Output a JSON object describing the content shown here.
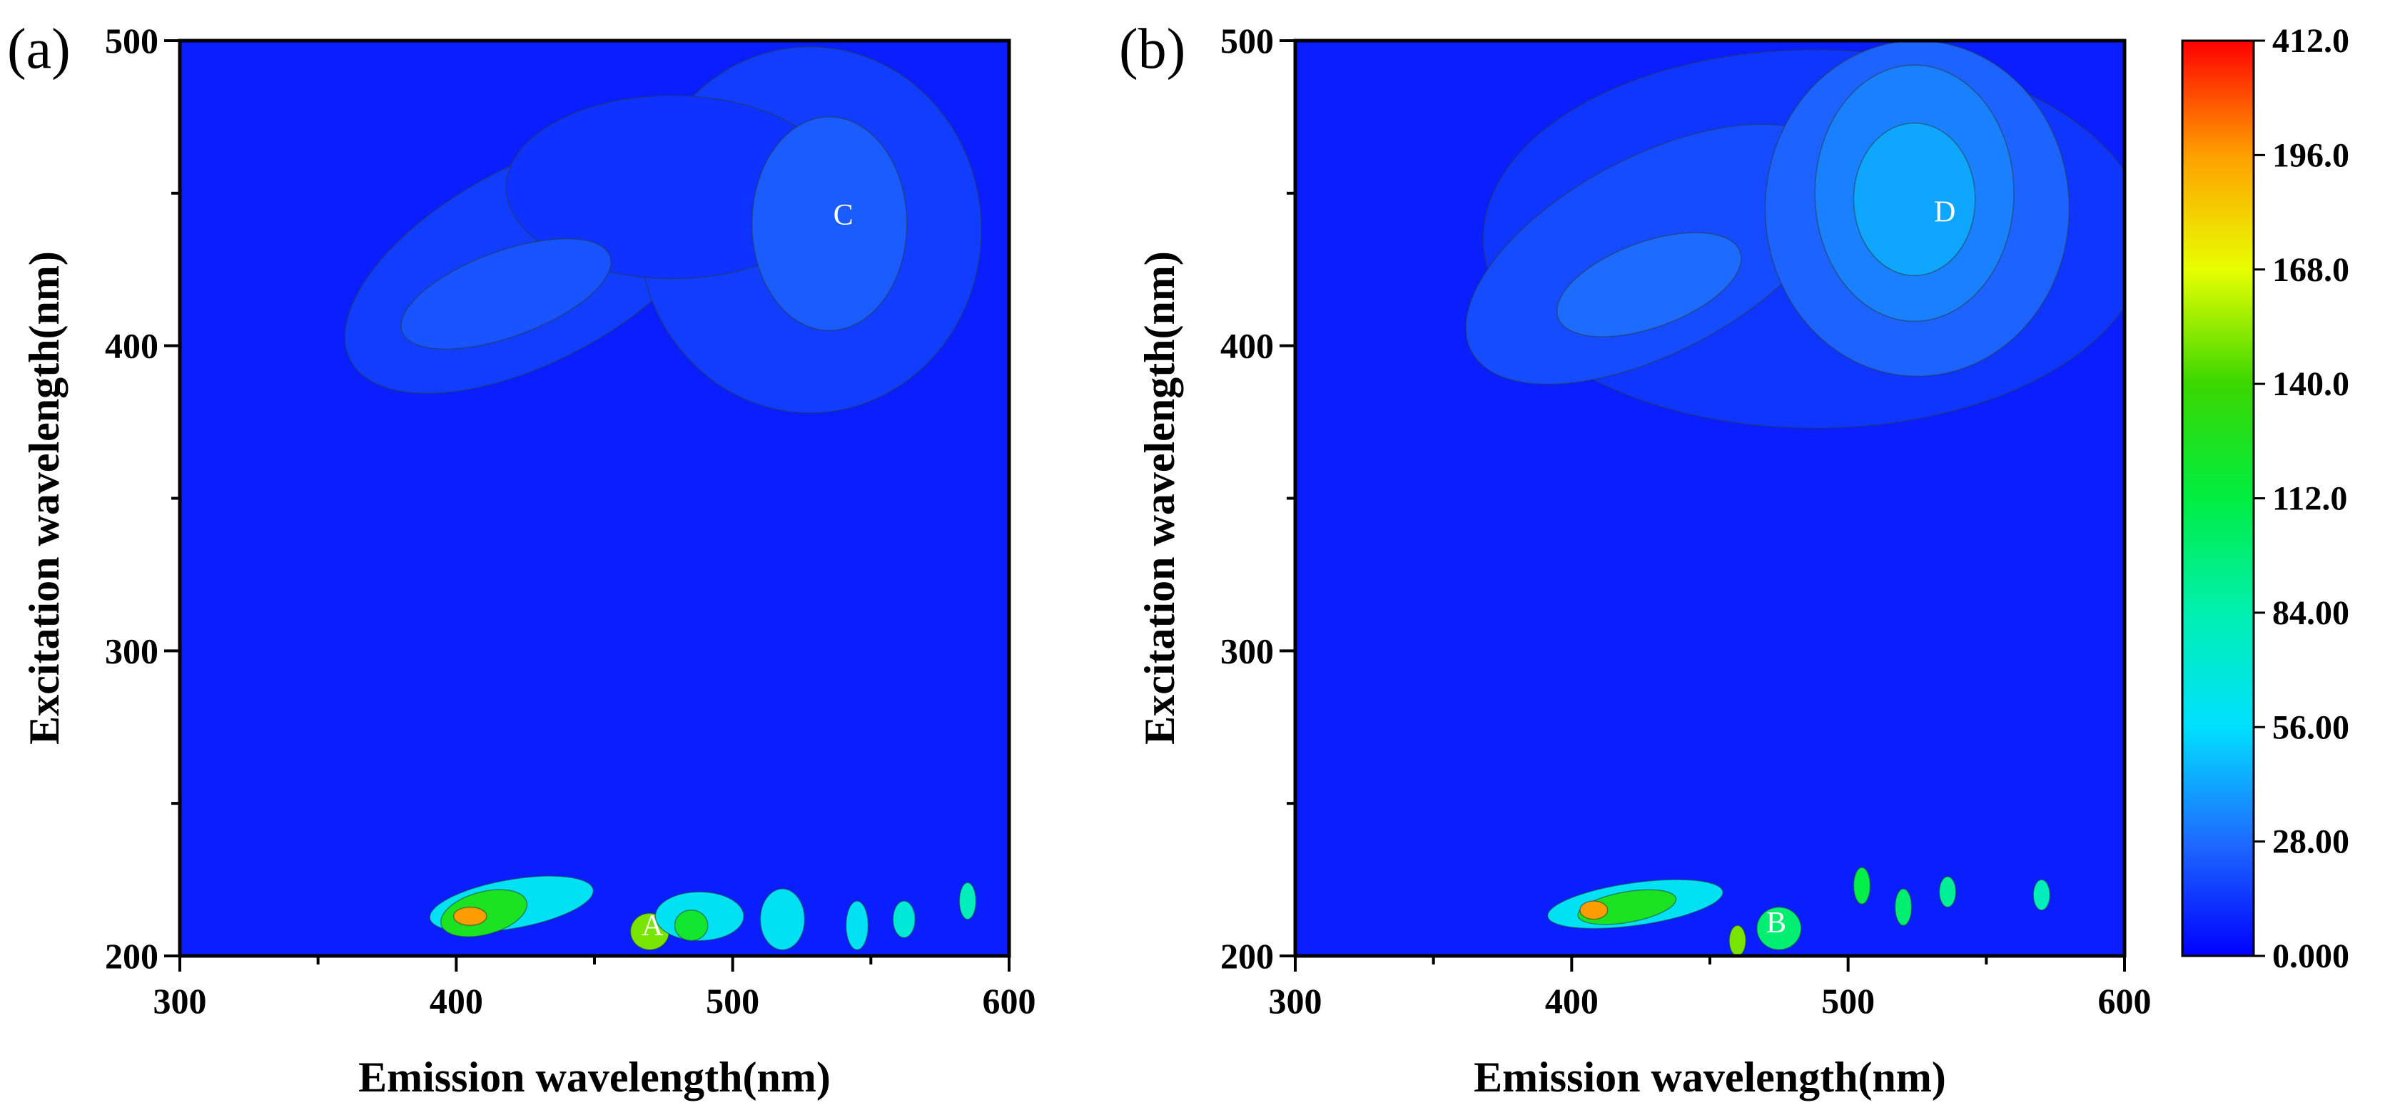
{
  "chart_data": [
    {
      "type": "heatmap",
      "panel_label": "(a)",
      "xlabel": "Emission wavelength(nm)",
      "ylabel": "Excitation wavelength(nm)",
      "xlim": [
        300,
        600
      ],
      "ylim": [
        200,
        500
      ],
      "xticks": [
        300,
        400,
        500,
        600
      ],
      "yticks": [
        200,
        300,
        400,
        500
      ],
      "background_value": 8,
      "peaks": [
        {
          "label": "C",
          "em": 540,
          "ex": 443,
          "value": 28
        },
        {
          "label": "A",
          "em": 471,
          "ex": 210,
          "value": 168
        }
      ],
      "regions": [
        {
          "em": 428,
          "ex": 427,
          "rx": 75,
          "ry": 32,
          "rot": -28,
          "v": 16
        },
        {
          "em": 528,
          "ex": 438,
          "rx": 62,
          "ry": 60,
          "rot": 0,
          "v": 16
        },
        {
          "em": 478,
          "ex": 452,
          "rx": 60,
          "ry": 30,
          "rot": 0,
          "v": 13
        },
        {
          "em": 418,
          "ex": 417,
          "rx": 40,
          "ry": 14,
          "rot": -20,
          "v": 22
        },
        {
          "em": 535,
          "ex": 440,
          "rx": 28,
          "ry": 35,
          "rot": 0,
          "v": 24
        },
        {
          "em": 420,
          "ex": 217,
          "rx": 30,
          "ry": 8,
          "rot": -10,
          "v": 60
        },
        {
          "em": 410,
          "ex": 214,
          "rx": 16,
          "ry": 7,
          "rot": -15,
          "v": 125
        },
        {
          "em": 405,
          "ex": 213,
          "rx": 6,
          "ry": 3,
          "rot": 0,
          "v": 200
        },
        {
          "em": 470,
          "ex": 208,
          "rx": 7,
          "ry": 6,
          "rot": 0,
          "v": 150
        },
        {
          "em": 488,
          "ex": 213,
          "rx": 16,
          "ry": 8,
          "rot": 0,
          "v": 60
        },
        {
          "em": 485,
          "ex": 210,
          "rx": 6,
          "ry": 5,
          "rot": 0,
          "v": 120
        },
        {
          "em": 518,
          "ex": 212,
          "rx": 8,
          "ry": 10,
          "rot": 0,
          "v": 60
        },
        {
          "em": 545,
          "ex": 210,
          "rx": 4,
          "ry": 8,
          "rot": 0,
          "v": 60
        },
        {
          "em": 562,
          "ex": 212,
          "rx": 4,
          "ry": 6,
          "rot": 0,
          "v": 70
        },
        {
          "em": 585,
          "ex": 218,
          "rx": 3,
          "ry": 6,
          "rot": 0,
          "v": 80
        }
      ]
    },
    {
      "type": "heatmap",
      "panel_label": "(b)",
      "xlabel": "Emission wavelength(nm)",
      "ylabel": "Excitation wavelength(nm)",
      "xlim": [
        300,
        600
      ],
      "ylim": [
        200,
        500
      ],
      "xticks": [
        300,
        400,
        500,
        600
      ],
      "yticks": [
        200,
        300,
        400,
        500
      ],
      "background_value": 8,
      "peaks": [
        {
          "label": "D",
          "em": 535,
          "ex": 444,
          "value": 45
        },
        {
          "label": "B",
          "em": 474,
          "ex": 211,
          "value": 120
        }
      ],
      "regions": [
        {
          "em": 488,
          "ex": 435,
          "rx": 120,
          "ry": 62,
          "rot": 0,
          "v": 14
        },
        {
          "em": 430,
          "ex": 430,
          "rx": 75,
          "ry": 32,
          "rot": -28,
          "v": 20
        },
        {
          "em": 525,
          "ex": 445,
          "rx": 55,
          "ry": 55,
          "rot": 0,
          "v": 26
        },
        {
          "em": 428,
          "ex": 420,
          "rx": 35,
          "ry": 14,
          "rot": -20,
          "v": 28
        },
        {
          "em": 524,
          "ex": 450,
          "rx": 36,
          "ry": 42,
          "rot": 0,
          "v": 33
        },
        {
          "em": 524,
          "ex": 448,
          "rx": 22,
          "ry": 25,
          "rot": 0,
          "v": 42
        },
        {
          "em": 423,
          "ex": 217,
          "rx": 32,
          "ry": 7,
          "rot": -8,
          "v": 60
        },
        {
          "em": 420,
          "ex": 216,
          "rx": 18,
          "ry": 5,
          "rot": -10,
          "v": 125
        },
        {
          "em": 408,
          "ex": 215,
          "rx": 5,
          "ry": 3,
          "rot": 0,
          "v": 200
        },
        {
          "em": 475,
          "ex": 209,
          "rx": 8,
          "ry": 7,
          "rot": 0,
          "v": 100
        },
        {
          "em": 505,
          "ex": 223,
          "rx": 3,
          "ry": 6,
          "rot": 0,
          "v": 110
        },
        {
          "em": 520,
          "ex": 216,
          "rx": 3,
          "ry": 6,
          "rot": 0,
          "v": 100
        },
        {
          "em": 536,
          "ex": 221,
          "rx": 3,
          "ry": 5,
          "rot": 0,
          "v": 90
        },
        {
          "em": 570,
          "ex": 220,
          "rx": 3,
          "ry": 5,
          "rot": 0,
          "v": 80
        },
        {
          "em": 460,
          "ex": 205,
          "rx": 3,
          "ry": 5,
          "rot": 0,
          "v": 150
        }
      ]
    }
  ],
  "colorbar": {
    "labels": [
      "0.000",
      "28.00",
      "56.00",
      "84.00",
      "112.0",
      "140.0",
      "168.0",
      "196.0",
      "412.0"
    ],
    "values": [
      0,
      28,
      56,
      84,
      112,
      140,
      168,
      196,
      412
    ],
    "stops": [
      {
        "v": 0,
        "color": "#0000ff"
      },
      {
        "v": 28,
        "color": "#1e6bff"
      },
      {
        "v": 56,
        "color": "#00e0ff"
      },
      {
        "v": 84,
        "color": "#00f0b0"
      },
      {
        "v": 112,
        "color": "#00ee40"
      },
      {
        "v": 140,
        "color": "#3ad700"
      },
      {
        "v": 168,
        "color": "#e8ff00"
      },
      {
        "v": 196,
        "color": "#ffa000"
      },
      {
        "v": 412,
        "color": "#ff0000"
      }
    ]
  },
  "colors": {
    "background": "#ffffff",
    "axis": "#000000",
    "contour_line": "#2a3b3b",
    "peak_label": "#ffffff"
  }
}
